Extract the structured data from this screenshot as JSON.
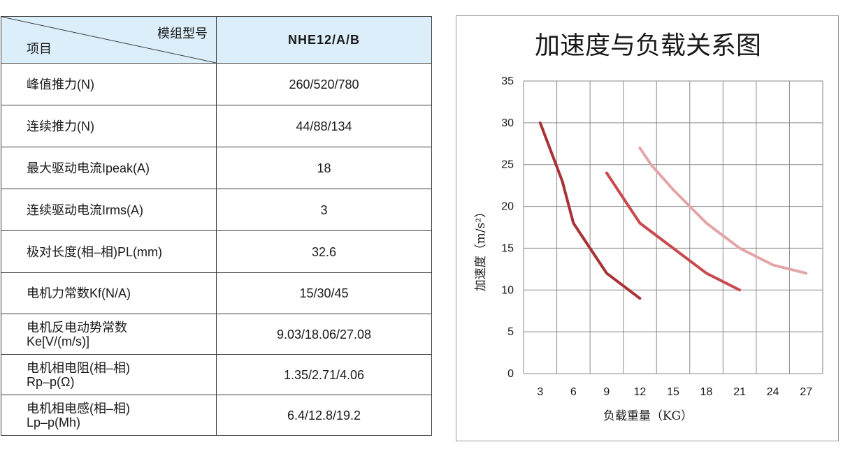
{
  "table": {
    "header": {
      "corner_top": "模组型号",
      "corner_bottom": "项目",
      "model": "NHE12/A/B"
    },
    "rows": [
      {
        "label": "峰值推力(N)",
        "value": "260/520/780"
      },
      {
        "label": "连续推力(N)",
        "value": "44/88/134"
      },
      {
        "label": "最大驱动电流Ipeak(A)",
        "value": "18"
      },
      {
        "label": "连续驱动电流Irms(A)",
        "value": "3"
      },
      {
        "label": "极对长度(相–相)PL(mm)",
        "value": "32.6"
      },
      {
        "label": "电机力常数Kf(N/A)",
        "value": "15/30/45"
      },
      {
        "label": "电机反电动势常数",
        "label2": "Ke[V/(m/s)]",
        "value": "9.03/18.06/27.08"
      },
      {
        "label": "电机相电阻(相–相)",
        "label2": "Rp–p(Ω)",
        "value": "1.35/2.71/4.06"
      },
      {
        "label": "电机相电感(相–相)",
        "label2": "Lp–p(Mh)",
        "value": "6.4/12.8/19.2"
      }
    ]
  },
  "chart_data": {
    "type": "line",
    "title": "加速度与负载关系图",
    "xlabel": "负载重量（KG）",
    "ylabel": "加速度（m/s²）",
    "x_ticks": [
      3,
      6,
      9,
      12,
      15,
      18,
      21,
      24,
      27
    ],
    "y_ticks": [
      0,
      5,
      10,
      15,
      20,
      25,
      30,
      35
    ],
    "xlim": [
      1.5,
      28.5
    ],
    "ylim": [
      0,
      35
    ],
    "grid": true,
    "legend": "none",
    "series": [
      {
        "color": "#a83236",
        "points": [
          [
            3,
            30
          ],
          [
            5,
            23
          ],
          [
            6,
            18
          ],
          [
            8,
            14
          ],
          [
            9,
            12
          ],
          [
            11,
            10
          ],
          [
            12,
            9
          ]
        ]
      },
      {
        "color": "#c84a4e",
        "points": [
          [
            9,
            24
          ],
          [
            11,
            20
          ],
          [
            12,
            18
          ],
          [
            15,
            15
          ],
          [
            18,
            12
          ],
          [
            21,
            10
          ]
        ]
      },
      {
        "color": "#e3a5a8",
        "points": [
          [
            12,
            27
          ],
          [
            13,
            25
          ],
          [
            15,
            22
          ],
          [
            18,
            18
          ],
          [
            21,
            15
          ],
          [
            24,
            13
          ],
          [
            27,
            12
          ]
        ]
      }
    ]
  }
}
